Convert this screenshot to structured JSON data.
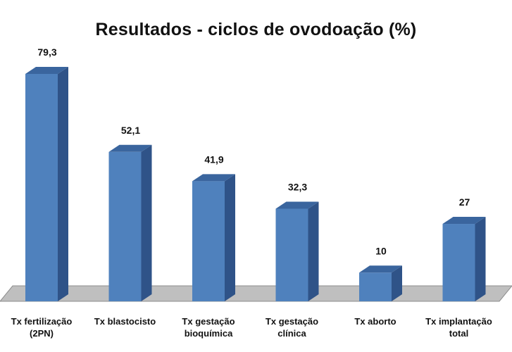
{
  "chart_data": {
    "type": "bar",
    "title": "Resultados - ciclos de ovodoação (%)",
    "categories": [
      [
        "Tx fertilização",
        "(2PN)"
      ],
      [
        "Tx blastocisto"
      ],
      [
        "Tx gestação",
        "bioquímica"
      ],
      [
        "Tx gestação",
        "clínica"
      ],
      [
        "Tx aborto"
      ],
      [
        "Tx implantação",
        "total"
      ]
    ],
    "values": [
      79.3,
      52.1,
      41.9,
      32.3,
      10,
      27
    ],
    "value_labels": [
      "79,3",
      "52,1",
      "41,9",
      "32,3",
      "10",
      "27"
    ],
    "ylim": [
      0,
      85
    ],
    "grid": false,
    "legend": "none",
    "bar_style": "3d",
    "colors": {
      "bar_front": "#4F81BD",
      "bar_side": "#2F5388",
      "bar_top": "#3A659E",
      "floor": "#BFBFBF",
      "floor_edge": "#8C8C8C"
    }
  }
}
